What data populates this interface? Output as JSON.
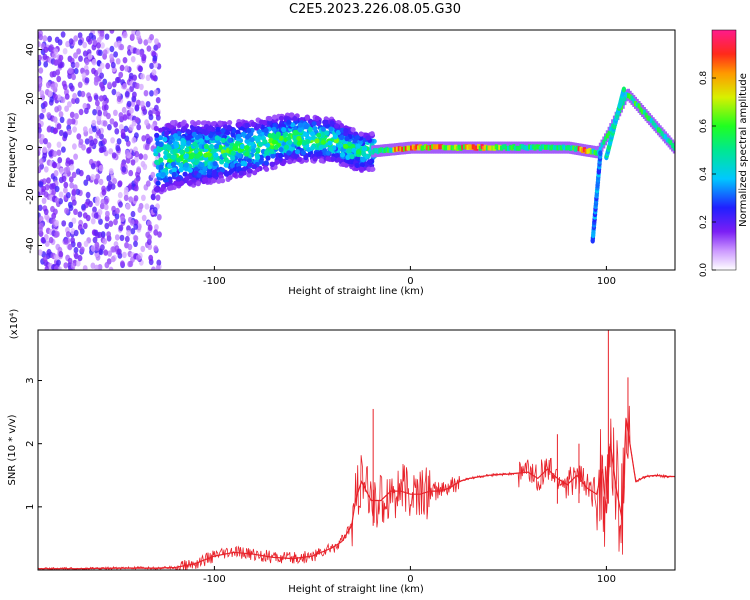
{
  "title": "C2E5.2023.226.08.05.G30",
  "chart_data": [
    {
      "type": "heatmap",
      "xlabel": "Height of straight line (km)",
      "ylabel": "Frequency (Hz)",
      "xlim": [
        -190,
        135
      ],
      "ylim": [
        -50,
        48
      ],
      "x_ticks": [
        -100,
        0,
        100
      ],
      "y_ticks": [
        -40,
        -20,
        0,
        20,
        40
      ],
      "colorbar": {
        "label": "Normalized spectral amplitude",
        "range": [
          0,
          1
        ],
        "ticks": [
          "0.0",
          "0.2",
          "0.4",
          "0.6",
          "0.8"
        ]
      },
      "ridge": [
        {
          "x": -190,
          "y": -8
        },
        {
          "x": -160,
          "y": -7
        },
        {
          "x": -140,
          "y": -7
        },
        {
          "x": -120,
          "y": -3
        },
        {
          "x": -100,
          "y": -2
        },
        {
          "x": -80,
          "y": 0
        },
        {
          "x": -60,
          "y": 4
        },
        {
          "x": -40,
          "y": 3
        },
        {
          "x": -25,
          "y": -2
        },
        {
          "x": 0,
          "y": 0
        },
        {
          "x": 40,
          "y": 0
        },
        {
          "x": 80,
          "y": 0
        },
        {
          "x": 95,
          "y": -2
        },
        {
          "x": 100,
          "y": 5
        },
        {
          "x": 110,
          "y": 22
        },
        {
          "x": 135,
          "y": -1
        }
      ]
    },
    {
      "type": "line",
      "xlabel": "Height of straight line (km)",
      "ylabel": "SNR (10 * v/v)",
      "y_multiplier": "(x10⁴)",
      "xlim": [
        -190,
        135
      ],
      "ylim": [
        0,
        3.8
      ],
      "x_ticks": [
        -100,
        0,
        100
      ],
      "y_ticks": [
        1,
        2,
        3
      ],
      "series": [
        {
          "color": "#e8222a",
          "x": [
            -190,
            -170,
            -150,
            -130,
            -120,
            -110,
            -100,
            -90,
            -80,
            -70,
            -60,
            -50,
            -40,
            -35,
            -30,
            -28,
            -25,
            -20,
            -15,
            -10,
            -5,
            0,
            5,
            10,
            15,
            20,
            25,
            30,
            40,
            50,
            60,
            65,
            70,
            75,
            80,
            85,
            90,
            95,
            98,
            100,
            102,
            105,
            108,
            110,
            115,
            120,
            125,
            130,
            135
          ],
          "y": [
            0.02,
            0.02,
            0.03,
            0.03,
            0.04,
            0.1,
            0.22,
            0.28,
            0.25,
            0.2,
            0.18,
            0.22,
            0.35,
            0.45,
            0.7,
            1.1,
            1.4,
            1.1,
            1.1,
            1.25,
            1.25,
            1.2,
            1.2,
            1.25,
            1.25,
            1.3,
            1.4,
            1.45,
            1.5,
            1.52,
            1.55,
            1.45,
            1.6,
            1.45,
            1.35,
            1.5,
            1.3,
            1.2,
            1.6,
            0.9,
            2.0,
            1.3,
            0.8,
            2.4,
            1.4,
            1.48,
            1.5,
            1.48,
            1.48
          ]
        }
      ]
    }
  ]
}
